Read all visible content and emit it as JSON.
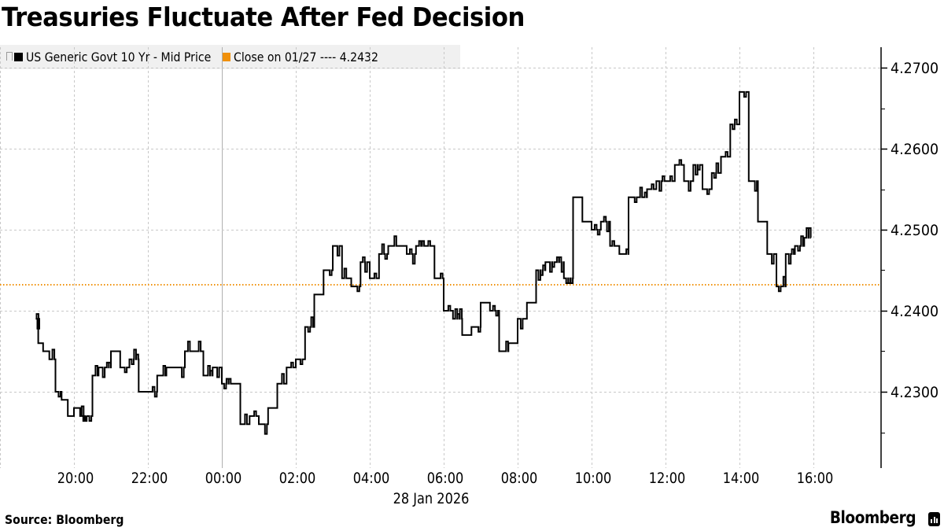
{
  "title": "Treasuries Fluctuate After Fed Decision",
  "legend": {
    "series_label": "US Generic Govt 10 Yr - Mid Price",
    "series_color": "#000000",
    "close_label": "Close on 01/27 ---- 4.2432",
    "close_color": "#f0900a"
  },
  "source": "Source: Bloomberg",
  "brand": "Bloomberg",
  "chart_data": {
    "type": "line",
    "title": "Treasuries Fluctuate After Fed Decision",
    "xlabel": "28 Jan 2026",
    "ylabel": "",
    "series_name": "US Generic Govt 10 Yr - Mid Price",
    "reference_line": {
      "label": "Close on 01/27",
      "value": 4.2432,
      "color": "#f0900a",
      "style": "dotted"
    },
    "x_ticks": [
      "20:00",
      "22:00",
      "00:00",
      "02:00",
      "04:00",
      "06:00",
      "08:00",
      "10:00",
      "12:00",
      "14:00",
      "16:00"
    ],
    "x_date_label": "28 Jan 2026",
    "y_ticks": [
      "4.2700",
      "4.2600",
      "4.2500",
      "4.2400",
      "4.2300"
    ],
    "ylim": [
      4.2225,
      4.2715
    ],
    "grid": true,
    "legend_position": "top-left",
    "axis_side": "right",
    "x": [
      "18:58",
      "19:02",
      "19:10",
      "19:20",
      "19:30",
      "19:40",
      "19:50",
      "20:00",
      "20:10",
      "20:20",
      "20:30",
      "20:40",
      "20:50",
      "21:00",
      "21:15",
      "21:30",
      "21:45",
      "22:00",
      "22:15",
      "22:30",
      "22:45",
      "23:00",
      "23:15",
      "23:30",
      "23:45",
      "00:00",
      "00:15",
      "00:30",
      "00:45",
      "01:00",
      "01:15",
      "01:30",
      "01:45",
      "02:00",
      "02:15",
      "02:30",
      "02:45",
      "03:00",
      "03:15",
      "03:30",
      "03:45",
      "04:00",
      "04:15",
      "04:30",
      "04:45",
      "05:00",
      "05:15",
      "05:30",
      "05:45",
      "06:00",
      "06:15",
      "06:30",
      "06:45",
      "07:00",
      "07:15",
      "07:30",
      "07:45",
      "08:00",
      "08:15",
      "08:30",
      "08:45",
      "09:00",
      "09:15",
      "09:30",
      "09:45",
      "10:00",
      "10:15",
      "10:30",
      "10:45",
      "11:00",
      "11:15",
      "11:30",
      "11:45",
      "12:00",
      "12:15",
      "12:30",
      "12:45",
      "13:00",
      "13:15",
      "13:30",
      "13:45",
      "14:00",
      "14:15",
      "14:30",
      "14:45",
      "15:00",
      "15:15",
      "15:30",
      "15:45"
    ],
    "values": [
      4.239,
      4.236,
      4.235,
      4.234,
      4.23,
      4.229,
      4.227,
      4.228,
      4.227,
      4.227,
      4.232,
      4.233,
      4.233,
      4.235,
      4.233,
      4.234,
      4.23,
      4.23,
      4.232,
      4.233,
      4.233,
      4.235,
      4.235,
      4.232,
      4.233,
      4.231,
      4.231,
      4.226,
      4.227,
      4.226,
      4.228,
      4.231,
      4.233,
      4.234,
      4.238,
      4.242,
      4.245,
      4.248,
      4.244,
      4.243,
      4.246,
      4.244,
      4.247,
      4.248,
      4.248,
      4.247,
      4.248,
      4.248,
      4.244,
      4.24,
      4.239,
      4.237,
      4.238,
      4.241,
      4.24,
      4.235,
      4.236,
      4.239,
      4.241,
      4.245,
      4.246,
      4.246,
      4.244,
      4.254,
      4.251,
      4.25,
      4.251,
      4.248,
      4.247,
      4.254,
      4.254,
      4.255,
      4.256,
      4.256,
      4.258,
      4.256,
      4.258,
      4.255,
      4.257,
      4.259,
      4.263,
      4.267,
      4.256,
      4.251,
      4.247,
      4.243,
      4.247,
      4.248,
      4.249
    ],
    "approximate": true
  }
}
